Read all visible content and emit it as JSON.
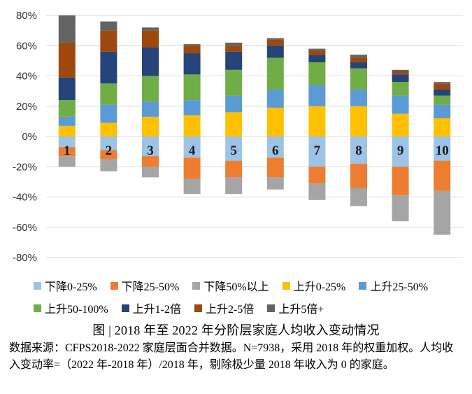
{
  "chart_data": {
    "type": "bar",
    "stacked": true,
    "categories": [
      "1",
      "2",
      "3",
      "4",
      "5",
      "6",
      "7",
      "8",
      "9",
      "10"
    ],
    "ylim": [
      -80,
      80
    ],
    "ytick_step": 20,
    "ytick_labels": [
      "80%",
      "60%",
      "40%",
      "20%",
      "0%",
      "-20%",
      "-40%",
      "-60%",
      "-80%"
    ],
    "grid": true,
    "legend_position": "bottom",
    "series": [
      {
        "name": "下降0-25%",
        "color": "#9DC3E6",
        "values": [
          -7,
          -9,
          -13,
          -14,
          -16,
          -14,
          -20,
          -18,
          -20,
          -16
        ]
      },
      {
        "name": "下降25-50%",
        "color": "#ED7D31",
        "values": [
          -6,
          -6,
          -7,
          -14,
          -11,
          -13,
          -11,
          -16,
          -19,
          -20
        ]
      },
      {
        "name": "下降50%以上",
        "color": "#A5A5A5",
        "values": [
          -7,
          -8,
          -7,
          -10,
          -11,
          -8,
          -11,
          -12,
          -17,
          -29
        ]
      },
      {
        "name": "上升0-25%",
        "color": "#FFC000",
        "values": [
          7,
          9,
          13,
          14,
          16,
          19,
          20,
          20,
          15,
          12
        ]
      },
      {
        "name": "上升25-50%",
        "color": "#5B9BD5",
        "values": [
          6,
          12,
          10,
          10,
          11,
          12,
          14,
          11,
          12,
          9
        ]
      },
      {
        "name": "上升50-100%",
        "color": "#70AD47",
        "values": [
          11,
          14,
          17,
          17,
          17,
          21,
          15,
          14,
          9,
          6
        ]
      },
      {
        "name": "上升1-2倍",
        "color": "#264478",
        "values": [
          15,
          21,
          19,
          14,
          12,
          8,
          5,
          4,
          5,
          4
        ]
      },
      {
        "name": "上升2-5倍",
        "color": "#9E480E",
        "values": [
          23,
          14,
          11,
          5,
          4,
          4,
          3,
          3,
          2,
          4
        ]
      },
      {
        "name": "上升5倍+",
        "color": "#636363",
        "values": [
          18,
          6,
          2,
          1,
          2,
          1,
          1,
          2,
          1,
          1
        ]
      }
    ]
  },
  "caption": "图 | 2018 年至 2022 年分阶层家庭人均收入变动情况",
  "note": "数据来源：CFPS2018-2022 家庭层面合并数据。N=7938，采用 2018 年的权重加权。人均收入变动率=（2022 年-2018 年）/2018 年，剔除极少量 2018 年收入为 0 的家庭。"
}
